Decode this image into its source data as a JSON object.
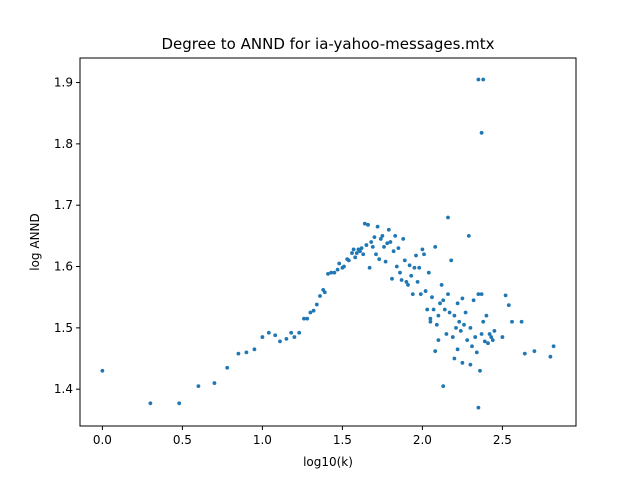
{
  "chart_data": {
    "type": "scatter",
    "title": "Degree to ANND for ia-yahoo-messages.mtx",
    "xlabel": "log10(k)",
    "ylabel": "log ANND",
    "xlim": [
      -0.14,
      2.96
    ],
    "ylim": [
      1.34,
      1.94
    ],
    "xticks": [
      "0.0",
      "0.5",
      "1.0",
      "1.5",
      "2.0",
      "2.5"
    ],
    "yticks": [
      "1.4",
      "1.5",
      "1.6",
      "1.7",
      "1.8",
      "1.9"
    ],
    "grid": false,
    "legend": "none",
    "point_color": "#1f77b4",
    "points": [
      [
        0.0,
        1.43
      ],
      [
        0.3,
        1.377
      ],
      [
        0.48,
        1.377
      ],
      [
        0.6,
        1.405
      ],
      [
        0.7,
        1.41
      ],
      [
        0.78,
        1.435
      ],
      [
        0.85,
        1.458
      ],
      [
        0.9,
        1.46
      ],
      [
        0.95,
        1.465
      ],
      [
        1.0,
        1.485
      ],
      [
        1.04,
        1.492
      ],
      [
        1.08,
        1.488
      ],
      [
        1.11,
        1.478
      ],
      [
        1.15,
        1.482
      ],
      [
        1.18,
        1.492
      ],
      [
        1.2,
        1.485
      ],
      [
        1.23,
        1.492
      ],
      [
        1.26,
        1.515
      ],
      [
        1.28,
        1.515
      ],
      [
        1.3,
        1.525
      ],
      [
        1.32,
        1.528
      ],
      [
        1.34,
        1.538
      ],
      [
        1.36,
        1.552
      ],
      [
        1.38,
        1.562
      ],
      [
        1.39,
        1.558
      ],
      [
        1.41,
        1.588
      ],
      [
        1.43,
        1.59
      ],
      [
        1.45,
        1.59
      ],
      [
        1.47,
        1.595
      ],
      [
        1.48,
        1.605
      ],
      [
        1.5,
        1.598
      ],
      [
        1.51,
        1.6
      ],
      [
        1.53,
        1.612
      ],
      [
        1.54,
        1.61
      ],
      [
        1.56,
        1.622
      ],
      [
        1.57,
        1.628
      ],
      [
        1.58,
        1.615
      ],
      [
        1.59,
        1.622
      ],
      [
        1.6,
        1.628
      ],
      [
        1.61,
        1.625
      ],
      [
        1.62,
        1.63
      ],
      [
        1.63,
        1.62
      ],
      [
        1.64,
        1.67
      ],
      [
        1.65,
        1.635
      ],
      [
        1.66,
        1.668
      ],
      [
        1.67,
        1.598
      ],
      [
        1.68,
        1.64
      ],
      [
        1.69,
        1.632
      ],
      [
        1.7,
        1.648
      ],
      [
        1.71,
        1.62
      ],
      [
        1.72,
        1.665
      ],
      [
        1.73,
        1.612
      ],
      [
        1.74,
        1.645
      ],
      [
        1.75,
        1.65
      ],
      [
        1.76,
        1.632
      ],
      [
        1.77,
        1.608
      ],
      [
        1.78,
        1.638
      ],
      [
        1.79,
        1.66
      ],
      [
        1.8,
        1.64
      ],
      [
        1.81,
        1.58
      ],
      [
        1.82,
        1.625
      ],
      [
        1.83,
        1.65
      ],
      [
        1.84,
        1.6
      ],
      [
        1.85,
        1.63
      ],
      [
        1.86,
        1.59
      ],
      [
        1.87,
        1.578
      ],
      [
        1.88,
        1.645
      ],
      [
        1.89,
        1.61
      ],
      [
        1.9,
        1.575
      ],
      [
        1.91,
        1.57
      ],
      [
        1.92,
        1.602
      ],
      [
        1.93,
        1.585
      ],
      [
        1.94,
        1.555
      ],
      [
        1.95,
        1.598
      ],
      [
        1.96,
        1.618
      ],
      [
        1.97,
        1.575
      ],
      [
        1.98,
        1.598
      ],
      [
        1.99,
        1.555
      ],
      [
        2.0,
        1.628
      ],
      [
        2.01,
        1.62
      ],
      [
        2.02,
        1.56
      ],
      [
        2.03,
        1.53
      ],
      [
        2.04,
        1.59
      ],
      [
        2.05,
        1.515
      ],
      [
        2.06,
        1.55
      ],
      [
        2.07,
        1.53
      ],
      [
        2.08,
        1.632
      ],
      [
        2.09,
        1.505
      ],
      [
        2.1,
        1.52
      ],
      [
        2.11,
        1.54
      ],
      [
        2.12,
        1.57
      ],
      [
        2.13,
        1.545
      ],
      [
        2.14,
        1.53
      ],
      [
        2.15,
        1.49
      ],
      [
        2.16,
        1.555
      ],
      [
        2.17,
        1.525
      ],
      [
        2.18,
        1.61
      ],
      [
        2.19,
        1.485
      ],
      [
        2.2,
        1.52
      ],
      [
        2.21,
        1.5
      ],
      [
        2.22,
        1.54
      ],
      [
        2.23,
        1.51
      ],
      [
        2.24,
        1.495
      ],
      [
        2.25,
        1.548
      ],
      [
        2.26,
        1.505
      ],
      [
        2.27,
        1.525
      ],
      [
        2.28,
        1.48
      ],
      [
        2.29,
        1.65
      ],
      [
        2.3,
        1.5
      ],
      [
        2.31,
        1.47
      ],
      [
        2.32,
        1.545
      ],
      [
        2.33,
        1.485
      ],
      [
        2.34,
        1.46
      ],
      [
        2.35,
        1.555
      ],
      [
        2.36,
        1.43
      ],
      [
        2.37,
        1.49
      ],
      [
        2.38,
        1.51
      ],
      [
        2.39,
        1.478
      ],
      [
        2.4,
        1.52
      ],
      [
        2.41,
        1.475
      ],
      [
        2.42,
        1.49
      ],
      [
        2.43,
        1.485
      ],
      [
        2.44,
        1.48
      ],
      [
        2.45,
        1.495
      ],
      [
        2.13,
        1.405
      ],
      [
        2.08,
        1.462
      ],
      [
        2.16,
        1.68
      ],
      [
        2.35,
        1.37
      ],
      [
        2.35,
        1.905
      ],
      [
        2.38,
        1.905
      ],
      [
        2.37,
        1.818
      ],
      [
        2.37,
        1.555
      ],
      [
        2.52,
        1.553
      ],
      [
        2.54,
        1.537
      ],
      [
        2.56,
        1.51
      ],
      [
        2.62,
        1.51
      ],
      [
        2.64,
        1.458
      ],
      [
        2.7,
        1.462
      ],
      [
        2.8,
        1.453
      ],
      [
        2.82,
        1.47
      ],
      [
        2.5,
        1.485
      ],
      [
        2.22,
        1.465
      ],
      [
        2.25,
        1.443
      ],
      [
        2.2,
        1.45
      ],
      [
        2.3,
        1.44
      ],
      [
        2.1,
        1.48
      ],
      [
        2.05,
        1.51
      ]
    ]
  }
}
